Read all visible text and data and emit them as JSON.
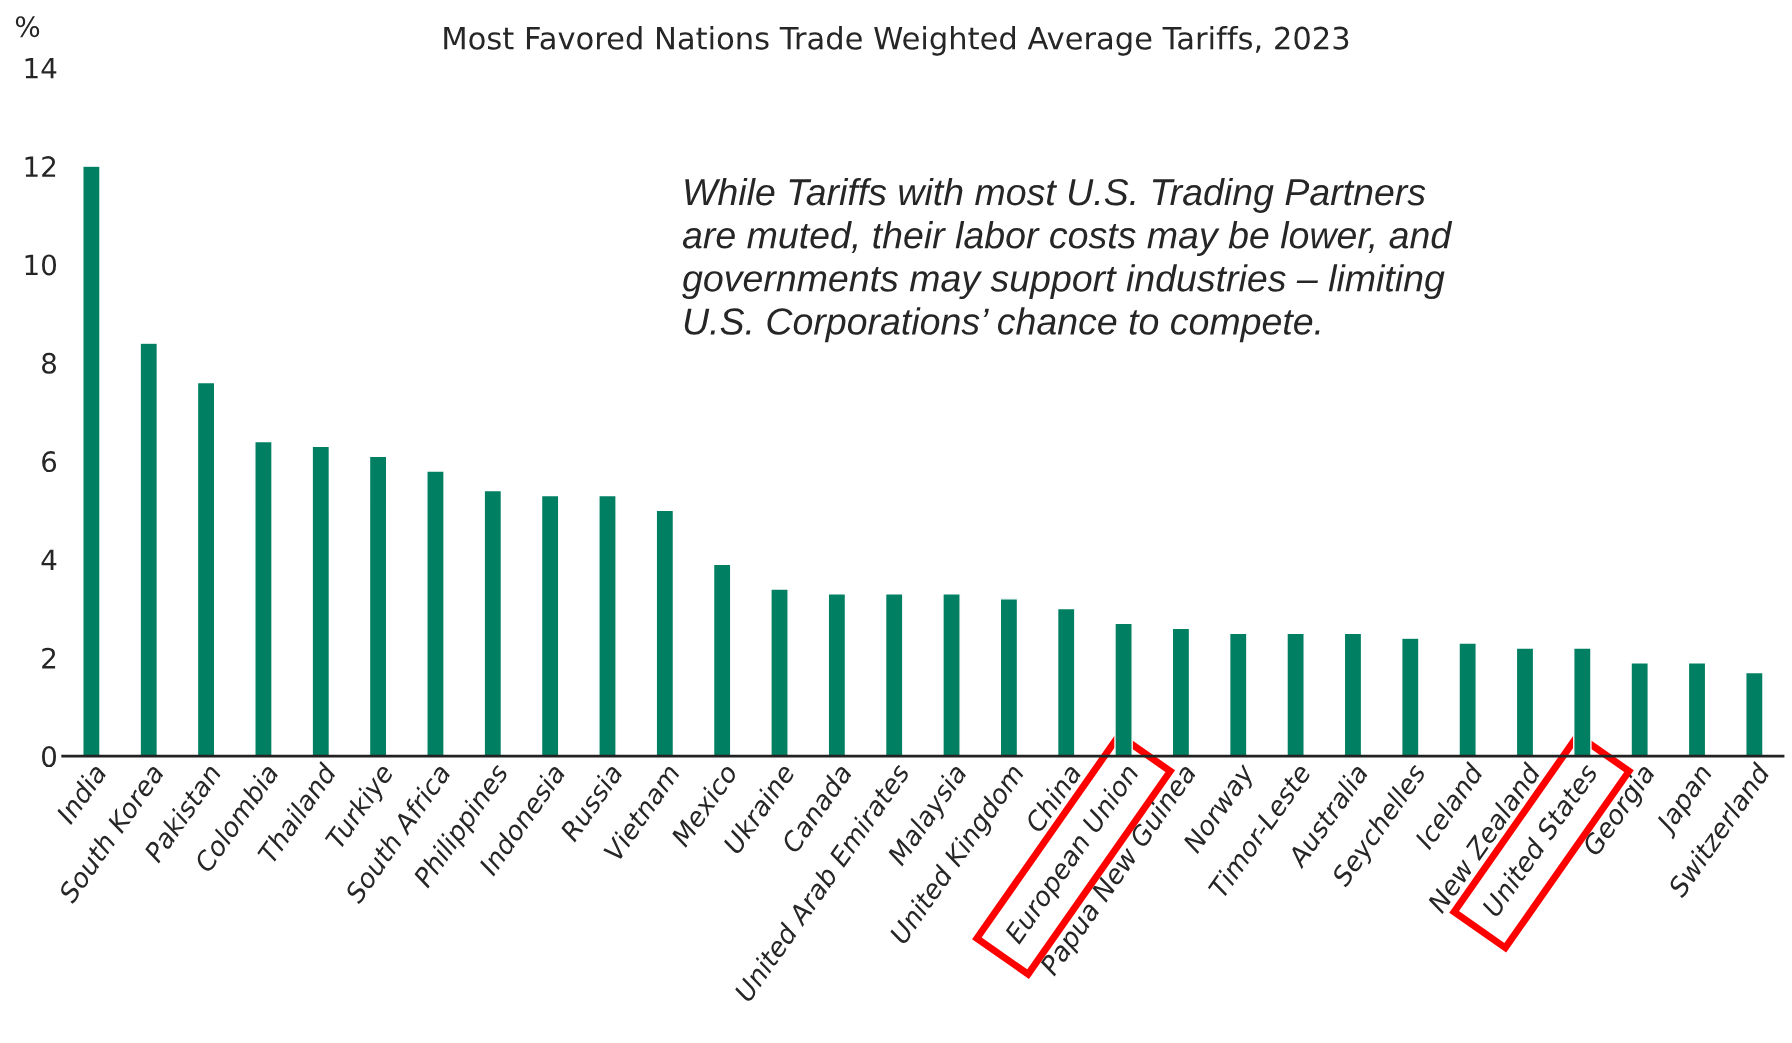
{
  "chart_data": {
    "type": "bar",
    "title": "Most Favored Nations Trade Weighted Average Tariffs, 2023",
    "ylabel": "%",
    "categories": [
      "India",
      "South Korea",
      "Pakistan",
      "Colombia",
      "Thailand",
      "Turkiye",
      "South Africa",
      "Philippines",
      "Indonesia",
      "Russia",
      "Vietnam",
      "Mexico",
      "Ukraine",
      "Canada",
      "United Arab Emirates",
      "Malaysia",
      "United Kingdom",
      "China",
      "European Union",
      "Papua New Guinea",
      "Norway",
      "Timor-Leste",
      "Australia",
      "Seychelles",
      "Iceland",
      "New Zealand",
      "United States",
      "Georgia",
      "Japan",
      "Switzerland"
    ],
    "values": [
      12.0,
      8.4,
      7.6,
      6.4,
      6.3,
      6.1,
      5.8,
      5.4,
      5.3,
      5.3,
      5.0,
      3.9,
      3.4,
      3.3,
      3.3,
      3.3,
      3.2,
      3.0,
      2.7,
      2.6,
      2.5,
      2.5,
      2.5,
      2.4,
      2.3,
      2.2,
      2.2,
      1.9,
      1.9,
      1.7
    ],
    "color": "#007f62",
    "ylim": [
      0,
      14
    ],
    "yticks": [
      0,
      2,
      4,
      6,
      8,
      10,
      12,
      14
    ],
    "grid": false,
    "annotations": [
      "While Tariffs with most U.S. Trading Partners\nare muted, their labor costs may be lower, and\ngovernments may support industries – limiting\nU.S. Corporations’ chance to compete."
    ]
  }
}
